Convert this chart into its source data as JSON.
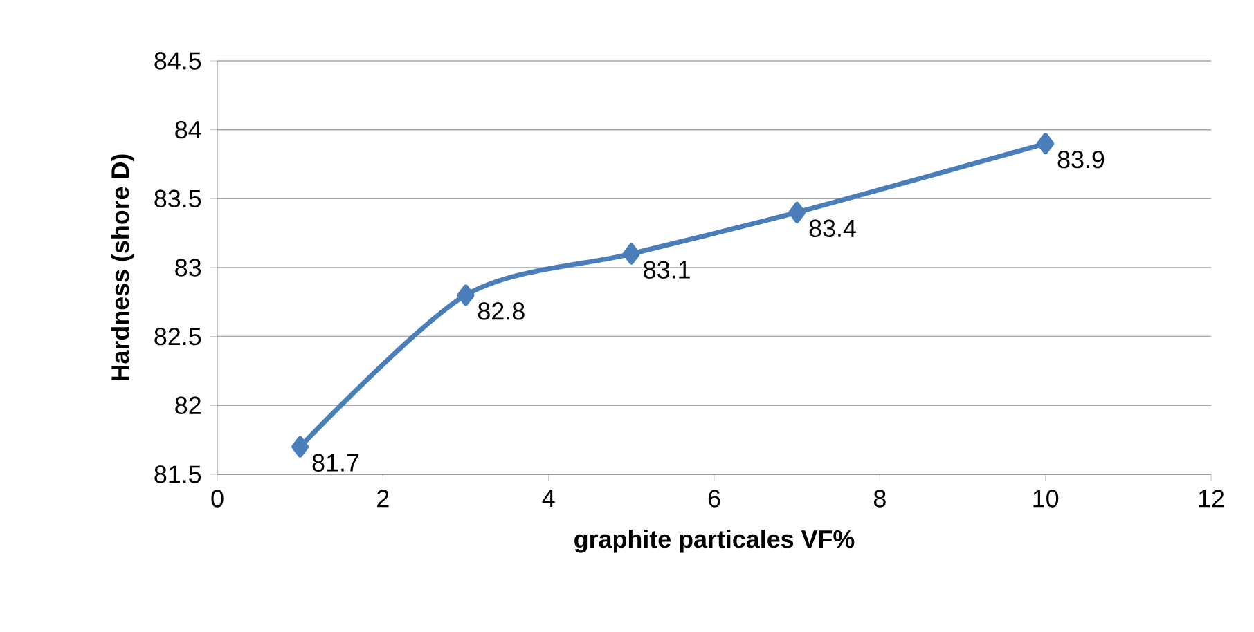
{
  "chart_data": {
    "type": "line",
    "xlabel": "graphite particales VF%",
    "ylabel": "Hardness (shore D)",
    "x": [
      1,
      3,
      5,
      7,
      10
    ],
    "values": [
      81.7,
      82.8,
      83.1,
      83.4,
      83.9
    ],
    "color": "#4a7ebb",
    "marker": "diamond",
    "line_style": "solid",
    "data_labels": true,
    "grid": "y",
    "xlim": [
      0,
      12
    ],
    "xticks": [
      0,
      2,
      4,
      6,
      8,
      10,
      12
    ],
    "ylim": [
      81.5,
      84.5
    ],
    "yticks": [
      81.5,
      82,
      82.5,
      83,
      83.5,
      84,
      84.5
    ]
  }
}
